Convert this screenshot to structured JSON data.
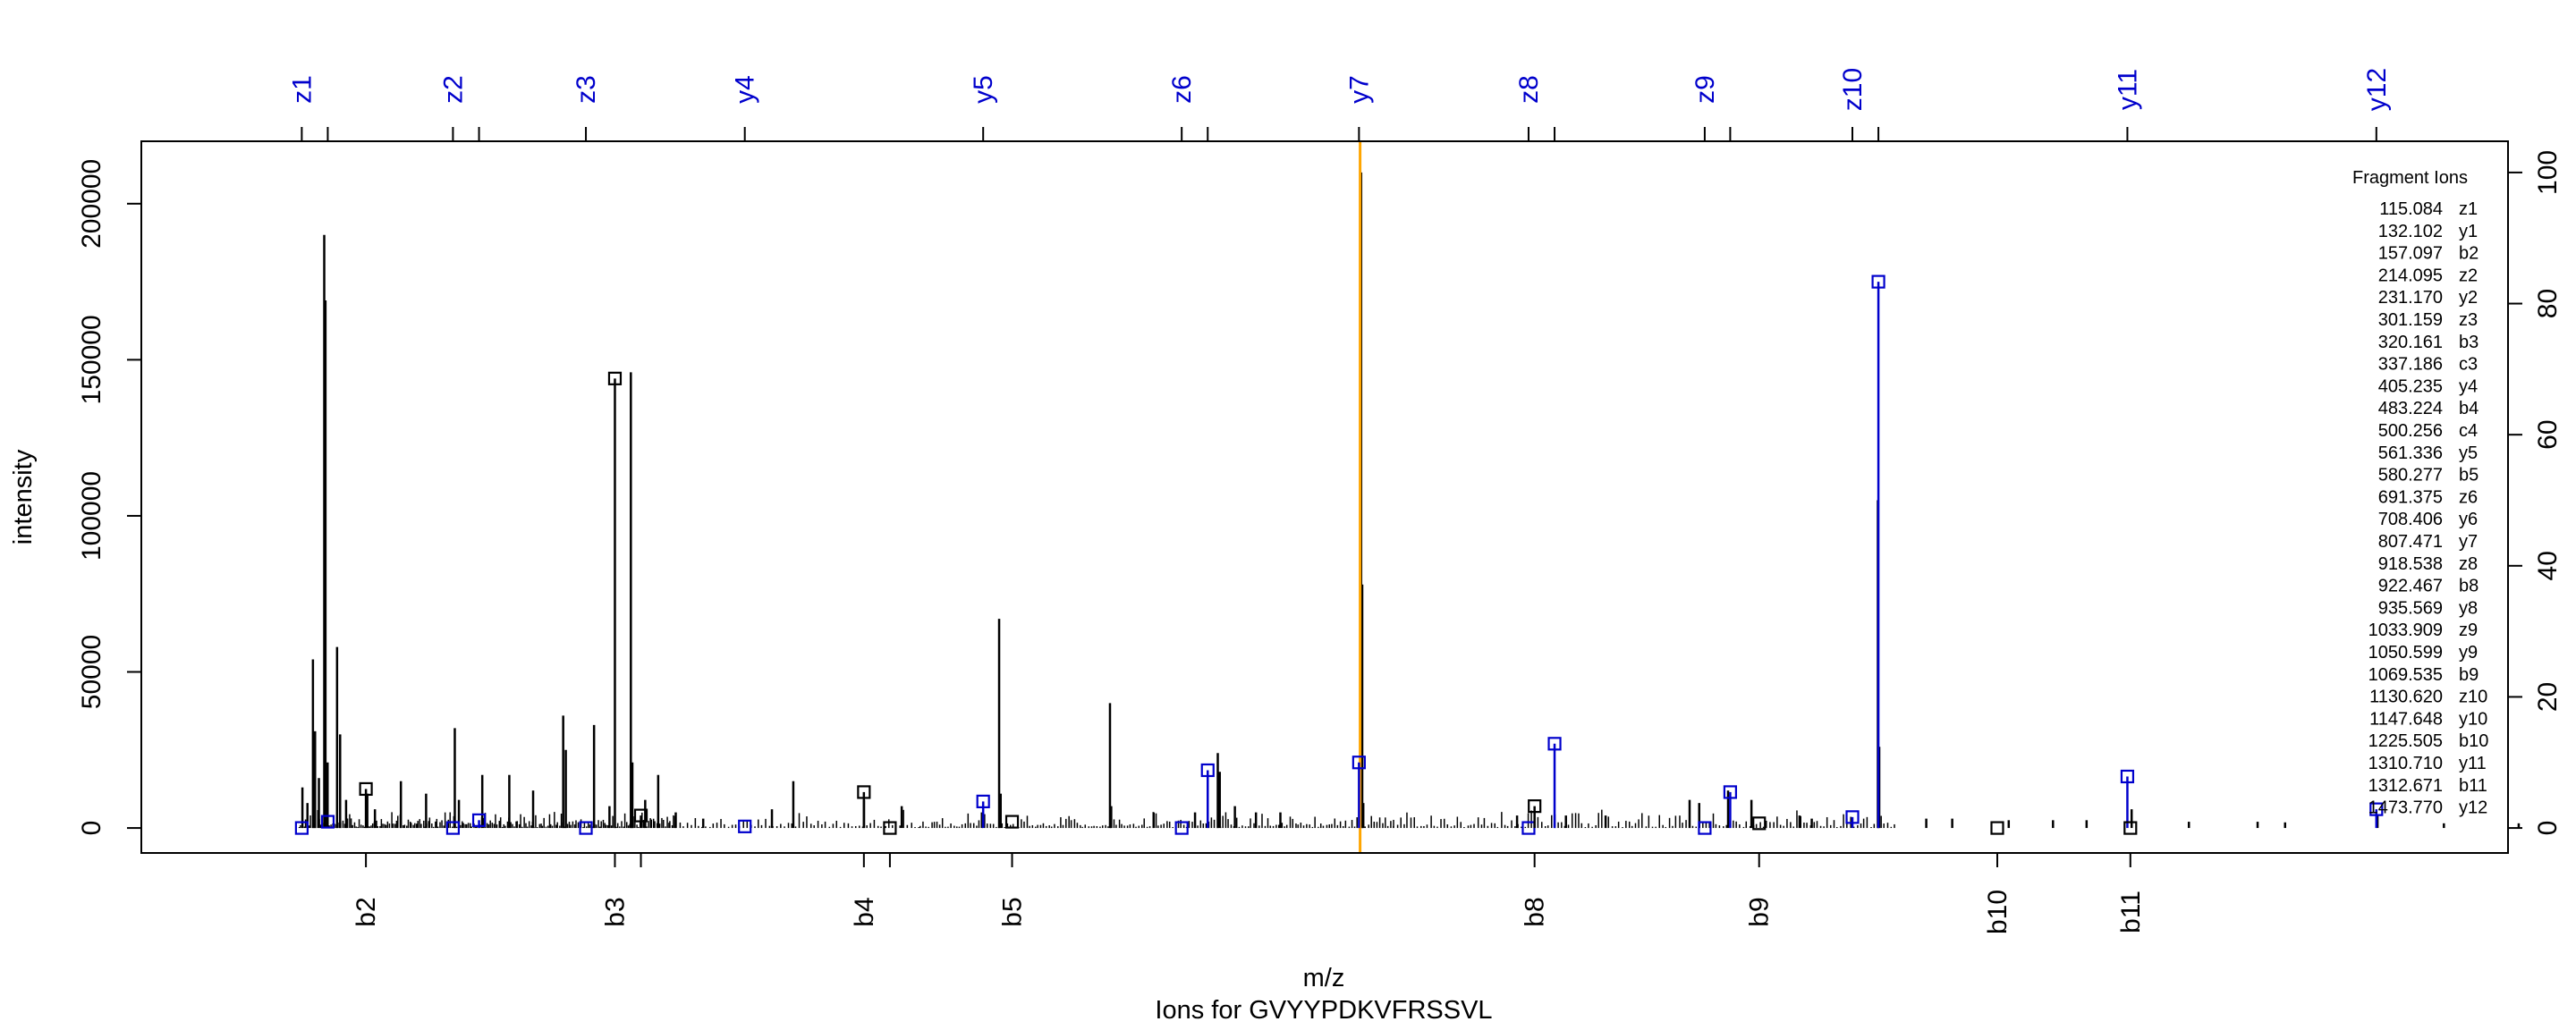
{
  "chart_data": {
    "type": "bar",
    "title": "Ions for GVYYPDKVFRSSVL",
    "xlabel": "m/z",
    "ylabel": "intensity",
    "xlim": [
      10,
      1560
    ],
    "ylim": [
      -8000,
      220000
    ],
    "y_ticks": [
      0,
      50000,
      100000,
      150000,
      200000
    ],
    "y2_ticks": [
      0,
      20,
      40,
      60,
      80,
      100
    ],
    "y2_range": [
      0,
      100
    ],
    "grid": false,
    "colors": {
      "spectrum": "#000000",
      "matched_y_z": "#0000cc",
      "matched_b_c": "#000000",
      "precursor": "#ffa500"
    },
    "precursor_mz": 808.2,
    "spectrum_peaks": [
      {
        "mz": 115.5,
        "intensity": 13000
      },
      {
        "mz": 118.8,
        "intensity": 8000
      },
      {
        "mz": 122.4,
        "intensity": 54000
      },
      {
        "mz": 123.8,
        "intensity": 31000
      },
      {
        "mz": 126.3,
        "intensity": 16000
      },
      {
        "mz": 129.8,
        "intensity": 190000
      },
      {
        "mz": 130.6,
        "intensity": 169000
      },
      {
        "mz": 132.0,
        "intensity": 21000
      },
      {
        "mz": 138.2,
        "intensity": 58000
      },
      {
        "mz": 140.2,
        "intensity": 30000
      },
      {
        "mz": 144.1,
        "intensity": 9000
      },
      {
        "mz": 158.0,
        "intensity": 11000
      },
      {
        "mz": 163.0,
        "intensity": 6000
      },
      {
        "mz": 180.0,
        "intensity": 15000
      },
      {
        "mz": 196.5,
        "intensity": 11000
      },
      {
        "mz": 215.3,
        "intensity": 32000
      },
      {
        "mz": 218.0,
        "intensity": 9000
      },
      {
        "mz": 233.3,
        "intensity": 17000
      },
      {
        "mz": 251.0,
        "intensity": 17000
      },
      {
        "mz": 266.6,
        "intensity": 12000
      },
      {
        "mz": 286.3,
        "intensity": 36000
      },
      {
        "mz": 288.0,
        "intensity": 25000
      },
      {
        "mz": 306.5,
        "intensity": 33000
      },
      {
        "mz": 316.6,
        "intensity": 7000
      },
      {
        "mz": 330.6,
        "intensity": 146000
      },
      {
        "mz": 331.6,
        "intensity": 21000
      },
      {
        "mz": 340.0,
        "intensity": 9000
      },
      {
        "mz": 348.5,
        "intensity": 17000
      },
      {
        "mz": 360.0,
        "intensity": 5000
      },
      {
        "mz": 378.0,
        "intensity": 3000
      },
      {
        "mz": 423.0,
        "intensity": 6000
      },
      {
        "mz": 437.0,
        "intensity": 15000
      },
      {
        "mz": 483.3,
        "intensity": 9000
      },
      {
        "mz": 508.0,
        "intensity": 7000
      },
      {
        "mz": 560.5,
        "intensity": 5000
      },
      {
        "mz": 571.8,
        "intensity": 67000
      },
      {
        "mz": 572.8,
        "intensity": 11000
      },
      {
        "mz": 644.4,
        "intensity": 40000
      },
      {
        "mz": 645.2,
        "intensity": 7000
      },
      {
        "mz": 673.0,
        "intensity": 5000
      },
      {
        "mz": 700.1,
        "intensity": 5000
      },
      {
        "mz": 715.0,
        "intensity": 24000
      },
      {
        "mz": 716.3,
        "intensity": 18000
      },
      {
        "mz": 726.2,
        "intensity": 7000
      },
      {
        "mz": 740.0,
        "intensity": 5000
      },
      {
        "mz": 756.0,
        "intensity": 5000
      },
      {
        "mz": 808.9,
        "intensity": 210000
      },
      {
        "mz": 809.6,
        "intensity": 78000
      },
      {
        "mz": 810.3,
        "intensity": 8000
      },
      {
        "mz": 911.0,
        "intensity": 4000
      },
      {
        "mz": 943.0,
        "intensity": 4000
      },
      {
        "mz": 969.0,
        "intensity": 4000
      },
      {
        "mz": 1024.0,
        "intensity": 9000
      },
      {
        "mz": 1030.3,
        "intensity": 8000
      },
      {
        "mz": 1064.5,
        "intensity": 9000
      },
      {
        "mz": 1049.2,
        "intensity": 12000
      },
      {
        "mz": 1096.0,
        "intensity": 4000
      },
      {
        "mz": 1104.0,
        "intensity": 3000
      },
      {
        "mz": 1147.3,
        "intensity": 105000
      },
      {
        "mz": 1148.2,
        "intensity": 26000
      },
      {
        "mz": 1179.0,
        "intensity": 3000
      },
      {
        "mz": 1196.0,
        "intensity": 3000
      },
      {
        "mz": 1233.0,
        "intensity": 2500
      },
      {
        "mz": 1262.0,
        "intensity": 2500
      },
      {
        "mz": 1284.0,
        "intensity": 2500
      },
      {
        "mz": 1313.5,
        "intensity": 6000
      },
      {
        "mz": 1351.0,
        "intensity": 2000
      },
      {
        "mz": 1396.0,
        "intensity": 2000
      },
      {
        "mz": 1414.0,
        "intensity": 1800
      },
      {
        "mz": 1474.5,
        "intensity": 4000
      },
      {
        "mz": 1518.0,
        "intensity": 1500
      },
      {
        "mz": 1567.0,
        "intensity": 1500
      }
    ],
    "matched_ions": [
      {
        "label": "z1",
        "mz": 115.084,
        "intensity": 0,
        "group": "top"
      },
      {
        "label": "y1",
        "mz": 132.102,
        "intensity": 2000,
        "group": "top"
      },
      {
        "label": "b2",
        "mz": 157.097,
        "intensity": 12500,
        "group": "bottom"
      },
      {
        "label": "z2",
        "mz": 214.095,
        "intensity": 0,
        "group": "top"
      },
      {
        "label": "y2",
        "mz": 231.17,
        "intensity": 2500,
        "group": "top"
      },
      {
        "label": "z3",
        "mz": 301.159,
        "intensity": 0,
        "group": "top"
      },
      {
        "label": "b3",
        "mz": 320.161,
        "intensity": 144000,
        "group": "bottom"
      },
      {
        "label": "c3",
        "mz": 337.186,
        "intensity": 4000,
        "group": "bottom"
      },
      {
        "label": "y4",
        "mz": 405.235,
        "intensity": 500,
        "group": "top"
      },
      {
        "label": "b4",
        "mz": 483.224,
        "intensity": 11500,
        "group": "bottom"
      },
      {
        "label": "c4",
        "mz": 500.256,
        "intensity": 0,
        "group": "bottom"
      },
      {
        "label": "y5",
        "mz": 561.336,
        "intensity": 8500,
        "group": "top"
      },
      {
        "label": "b5",
        "mz": 580.277,
        "intensity": 2000,
        "group": "bottom"
      },
      {
        "label": "z6",
        "mz": 691.375,
        "intensity": 0,
        "group": "top"
      },
      {
        "label": "y6",
        "mz": 708.406,
        "intensity": 18500,
        "group": "top"
      },
      {
        "label": "y7",
        "mz": 807.471,
        "intensity": 21000,
        "group": "top"
      },
      {
        "label": "z8",
        "mz": 918.538,
        "intensity": 0,
        "group": "top"
      },
      {
        "label": "b8",
        "mz": 922.467,
        "intensity": 7000,
        "group": "bottom"
      },
      {
        "label": "y8",
        "mz": 935.569,
        "intensity": 27000,
        "group": "top"
      },
      {
        "label": "z9",
        "mz": 1033.909,
        "intensity": 0,
        "group": "top"
      },
      {
        "label": "y9",
        "mz": 1050.599,
        "intensity": 11500,
        "group": "top"
      },
      {
        "label": "b9",
        "mz": 1069.535,
        "intensity": 1500,
        "group": "bottom"
      },
      {
        "label": "z10",
        "mz": 1130.62,
        "intensity": 3500,
        "group": "top"
      },
      {
        "label": "y10",
        "mz": 1147.648,
        "intensity": 175000,
        "group": "top"
      },
      {
        "label": "b10",
        "mz": 1225.505,
        "intensity": 0,
        "group": "bottom"
      },
      {
        "label": "y11",
        "mz": 1310.71,
        "intensity": 16500,
        "group": "top"
      },
      {
        "label": "b11",
        "mz": 1312.671,
        "intensity": 0,
        "group": "bottom"
      },
      {
        "label": "y12",
        "mz": 1473.77,
        "intensity": 6000,
        "group": "top"
      }
    ],
    "top_labels": [
      "z1",
      "z2",
      "z3",
      "y4",
      "y5",
      "z6",
      "y7",
      "z8",
      "z9",
      "z10",
      "y11",
      "y12"
    ],
    "bottom_labels": [
      "b2",
      "b3",
      "b4",
      "b5",
      "b8",
      "b9",
      "b10",
      "b11"
    ],
    "legend": {
      "title": "Fragment Ions",
      "placement": "right",
      "entries": [
        {
          "mz": "115.084",
          "ion": "z1"
        },
        {
          "mz": "132.102",
          "ion": "y1"
        },
        {
          "mz": "157.097",
          "ion": "b2"
        },
        {
          "mz": "214.095",
          "ion": "z2"
        },
        {
          "mz": "231.170",
          "ion": "y2"
        },
        {
          "mz": "301.159",
          "ion": "z3"
        },
        {
          "mz": "320.161",
          "ion": "b3"
        },
        {
          "mz": "337.186",
          "ion": "c3"
        },
        {
          "mz": "405.235",
          "ion": "y4"
        },
        {
          "mz": "483.224",
          "ion": "b4"
        },
        {
          "mz": "500.256",
          "ion": "c4"
        },
        {
          "mz": "561.336",
          "ion": "y5"
        },
        {
          "mz": "580.277",
          "ion": "b5"
        },
        {
          "mz": "691.375",
          "ion": "z6"
        },
        {
          "mz": "708.406",
          "ion": "y6"
        },
        {
          "mz": "807.471",
          "ion": "y7"
        },
        {
          "mz": "918.538",
          "ion": "z8"
        },
        {
          "mz": "922.467",
          "ion": "b8"
        },
        {
          "mz": "935.569",
          "ion": "y8"
        },
        {
          "mz": "1033.909",
          "ion": "z9"
        },
        {
          "mz": "1050.599",
          "ion": "y9"
        },
        {
          "mz": "1069.535",
          "ion": "b9"
        },
        {
          "mz": "1130.620",
          "ion": "z10"
        },
        {
          "mz": "1147.648",
          "ion": "y10"
        },
        {
          "mz": "1225.505",
          "ion": "b10"
        },
        {
          "mz": "1310.710",
          "ion": "y11"
        },
        {
          "mz": "1312.671",
          "ion": "b11"
        },
        {
          "mz": "1473.770",
          "ion": "y12"
        }
      ]
    }
  }
}
